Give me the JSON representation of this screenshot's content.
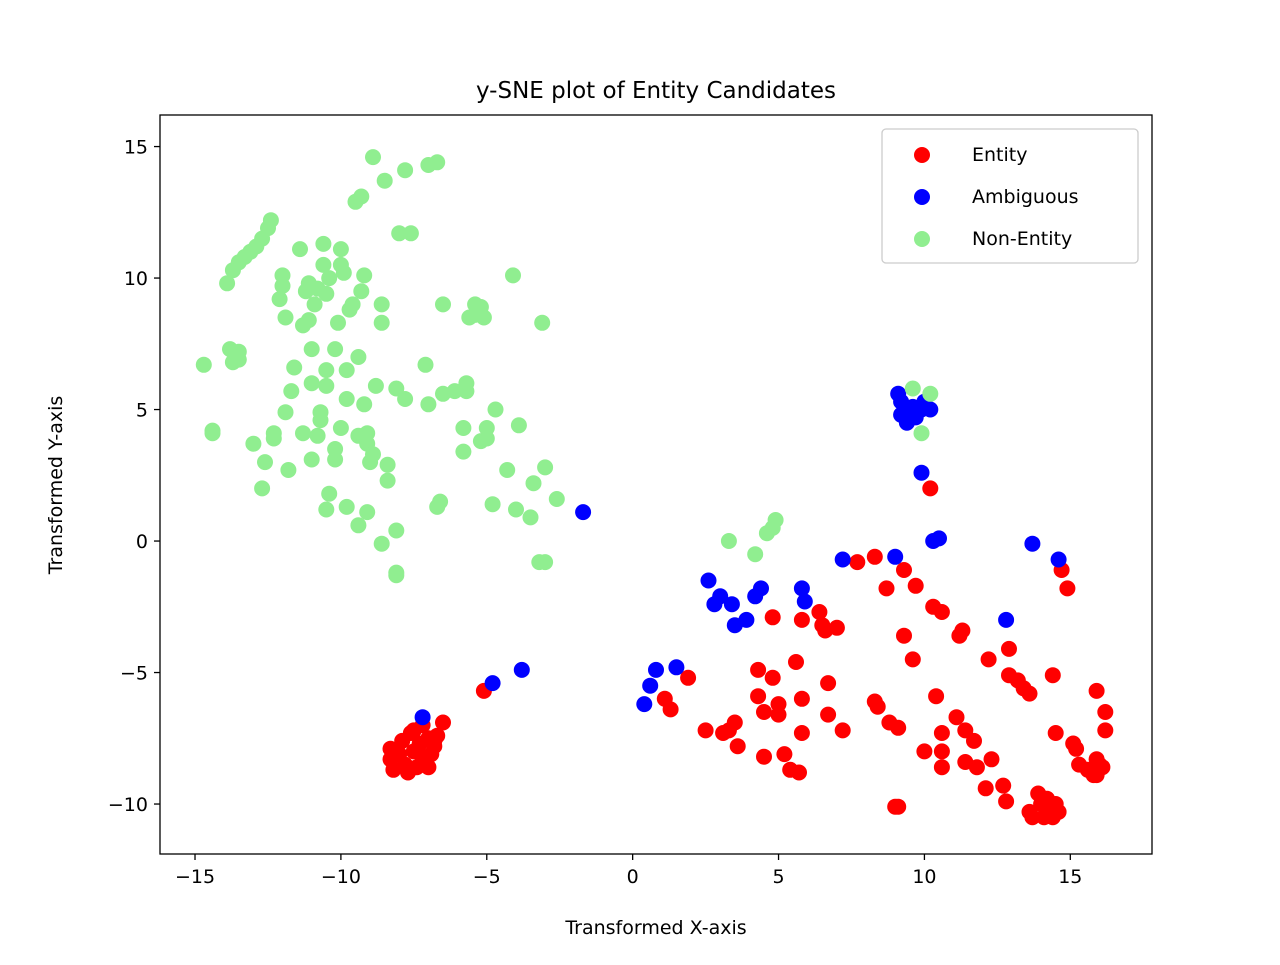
{
  "chart_data": {
    "type": "scatter",
    "title": "y-SNE plot of Entity Candidates",
    "xlabel": "Transformed X-axis",
    "ylabel": "Transformed Y-axis",
    "xlim": [
      -16.2,
      17.8
    ],
    "ylim": [
      -11.9,
      16.2
    ],
    "xticks": [
      -15,
      -10,
      -5,
      0,
      5,
      10,
      15
    ],
    "yticks": [
      15,
      10,
      5,
      0,
      -5,
      -10
    ],
    "xtick_labels": [
      "−15",
      "−10",
      "−5",
      "0",
      "5",
      "10",
      "15"
    ],
    "ytick_labels": [
      "15",
      "10",
      "5",
      "0",
      "−5",
      "−10"
    ],
    "grid": false,
    "legend": {
      "position": "top-right"
    },
    "series": [
      {
        "name": "Entity",
        "color": "#ff0000",
        "points": [
          [
            -8.3,
            -7.9
          ],
          [
            -8.3,
            -8.3
          ],
          [
            -8.2,
            -8.7
          ],
          [
            -8.0,
            -8.1
          ],
          [
            -7.9,
            -7.6
          ],
          [
            -7.8,
            -8.5
          ],
          [
            -7.6,
            -7.3
          ],
          [
            -7.5,
            -8.0
          ],
          [
            -7.4,
            -8.6
          ],
          [
            -7.3,
            -7.7
          ],
          [
            -7.2,
            -8.2
          ],
          [
            -7.1,
            -8.4
          ],
          [
            -7.0,
            -7.5
          ],
          [
            -6.9,
            -8.1
          ],
          [
            -6.8,
            -7.8
          ],
          [
            -7.0,
            -8.6
          ],
          [
            -7.5,
            -7.2
          ],
          [
            -7.7,
            -8.8
          ],
          [
            -6.7,
            -7.4
          ],
          [
            -6.5,
            -6.9
          ],
          [
            -7.2,
            -7.0
          ],
          [
            -6.8,
            -7.6
          ],
          [
            -5.1,
            -5.7
          ],
          [
            1.1,
            -6.0
          ],
          [
            1.3,
            -6.4
          ],
          [
            1.9,
            -5.2
          ],
          [
            2.5,
            -7.2
          ],
          [
            3.1,
            -7.3
          ],
          [
            3.3,
            -7.2
          ],
          [
            3.5,
            -6.9
          ],
          [
            3.6,
            -7.8
          ],
          [
            4.3,
            -4.9
          ],
          [
            4.3,
            -5.9
          ],
          [
            4.5,
            -6.5
          ],
          [
            4.5,
            -8.2
          ],
          [
            4.8,
            -5.2
          ],
          [
            4.8,
            -2.9
          ],
          [
            5.0,
            -6.2
          ],
          [
            5.0,
            -6.6
          ],
          [
            5.2,
            -8.1
          ],
          [
            5.4,
            -8.7
          ],
          [
            5.6,
            -4.6
          ],
          [
            5.7,
            -8.8
          ],
          [
            5.8,
            -3.0
          ],
          [
            5.8,
            -6.0
          ],
          [
            5.8,
            -7.3
          ],
          [
            6.4,
            -2.7
          ],
          [
            6.5,
            -3.2
          ],
          [
            6.6,
            -3.4
          ],
          [
            6.7,
            -5.4
          ],
          [
            6.7,
            -6.6
          ],
          [
            7.0,
            -3.3
          ],
          [
            7.2,
            -7.2
          ],
          [
            7.7,
            -0.8
          ],
          [
            8.3,
            -0.6
          ],
          [
            8.3,
            -6.1
          ],
          [
            8.4,
            -6.3
          ],
          [
            8.7,
            -1.8
          ],
          [
            8.8,
            -6.9
          ],
          [
            9.0,
            -10.1
          ],
          [
            9.1,
            -10.1
          ],
          [
            9.1,
            -7.1
          ],
          [
            9.3,
            -1.1
          ],
          [
            9.3,
            -3.6
          ],
          [
            9.6,
            -4.5
          ],
          [
            9.7,
            -1.7
          ],
          [
            10.0,
            -8.0
          ],
          [
            10.2,
            2.0
          ],
          [
            10.3,
            -2.5
          ],
          [
            10.4,
            -5.9
          ],
          [
            10.6,
            -2.7
          ],
          [
            10.6,
            -7.3
          ],
          [
            10.6,
            -8.0
          ],
          [
            10.6,
            -8.6
          ],
          [
            11.1,
            -6.7
          ],
          [
            11.2,
            -3.6
          ],
          [
            11.3,
            -3.4
          ],
          [
            11.4,
            -7.2
          ],
          [
            11.4,
            -8.4
          ],
          [
            11.7,
            -7.6
          ],
          [
            11.8,
            -8.6
          ],
          [
            12.1,
            -9.4
          ],
          [
            12.2,
            -4.5
          ],
          [
            12.3,
            -8.3
          ],
          [
            12.7,
            -9.3
          ],
          [
            12.8,
            -9.9
          ],
          [
            12.9,
            -4.1
          ],
          [
            12.9,
            -5.1
          ],
          [
            13.2,
            -5.3
          ],
          [
            13.4,
            -5.6
          ],
          [
            13.6,
            -5.8
          ],
          [
            13.6,
            -10.3
          ],
          [
            13.7,
            -10.5
          ],
          [
            13.9,
            -9.6
          ],
          [
            14.0,
            -10.0
          ],
          [
            14.1,
            -10.5
          ],
          [
            14.2,
            -9.8
          ],
          [
            14.3,
            -10.2
          ],
          [
            14.4,
            -10.5
          ],
          [
            14.5,
            -10.0
          ],
          [
            14.6,
            -10.3
          ],
          [
            14.4,
            -5.1
          ],
          [
            14.5,
            -7.3
          ],
          [
            14.7,
            -1.1
          ],
          [
            14.9,
            -1.8
          ],
          [
            15.1,
            -7.7
          ],
          [
            15.2,
            -7.9
          ],
          [
            15.3,
            -8.5
          ],
          [
            15.6,
            -8.7
          ],
          [
            15.8,
            -8.9
          ],
          [
            15.9,
            -8.3
          ],
          [
            15.9,
            -8.9
          ],
          [
            15.9,
            -5.7
          ],
          [
            16.0,
            -8.5
          ],
          [
            16.1,
            -8.6
          ],
          [
            16.2,
            -6.5
          ],
          [
            16.2,
            -7.2
          ]
        ]
      },
      {
        "name": "Ambiguous",
        "color": "#0000ff",
        "points": [
          [
            -7.2,
            -6.7
          ],
          [
            -4.8,
            -5.4
          ],
          [
            -3.8,
            -4.9
          ],
          [
            -1.7,
            1.1
          ],
          [
            0.4,
            -6.2
          ],
          [
            0.6,
            -5.5
          ],
          [
            0.8,
            -4.9
          ],
          [
            1.5,
            -4.8
          ],
          [
            2.6,
            -1.5
          ],
          [
            2.8,
            -2.4
          ],
          [
            3.0,
            -2.1
          ],
          [
            3.4,
            -2.4
          ],
          [
            3.5,
            -3.2
          ],
          [
            3.9,
            -3.0
          ],
          [
            4.2,
            -2.1
          ],
          [
            4.4,
            -1.8
          ],
          [
            5.8,
            -1.8
          ],
          [
            5.9,
            -2.3
          ],
          [
            7.2,
            -0.7
          ],
          [
            9.0,
            -0.6
          ],
          [
            9.1,
            5.6
          ],
          [
            9.2,
            5.3
          ],
          [
            9.2,
            4.8
          ],
          [
            9.4,
            4.5
          ],
          [
            9.6,
            5.1
          ],
          [
            9.7,
            4.7
          ],
          [
            9.9,
            5.0
          ],
          [
            10.0,
            5.3
          ],
          [
            10.2,
            5.0
          ],
          [
            9.9,
            2.6
          ],
          [
            10.3,
            0.0
          ],
          [
            10.5,
            0.1
          ],
          [
            12.8,
            -3.0
          ],
          [
            13.7,
            -0.1
          ],
          [
            14.6,
            -0.7
          ]
        ]
      },
      {
        "name": "Non-Entity",
        "color": "#90ee90",
        "points": [
          [
            -14.7,
            6.7
          ],
          [
            -14.4,
            4.1
          ],
          [
            -14.4,
            4.2
          ],
          [
            -13.9,
            9.8
          ],
          [
            -13.8,
            7.3
          ],
          [
            -13.7,
            6.8
          ],
          [
            -13.5,
            7.2
          ],
          [
            -13.5,
            6.9
          ],
          [
            -13.7,
            10.3
          ],
          [
            -13.5,
            10.6
          ],
          [
            -13.3,
            10.8
          ],
          [
            -13.1,
            11.0
          ],
          [
            -12.9,
            11.2
          ],
          [
            -12.7,
            11.5
          ],
          [
            -12.5,
            11.9
          ],
          [
            -12.4,
            12.2
          ],
          [
            -13.0,
            3.7
          ],
          [
            -12.7,
            2.0
          ],
          [
            -12.6,
            3.0
          ],
          [
            -12.3,
            3.9
          ],
          [
            -12.3,
            4.1
          ],
          [
            -12.1,
            9.2
          ],
          [
            -12.0,
            9.7
          ],
          [
            -12.0,
            10.1
          ],
          [
            -11.9,
            8.5
          ],
          [
            -11.9,
            4.9
          ],
          [
            -11.8,
            2.7
          ],
          [
            -11.7,
            5.7
          ],
          [
            -11.6,
            6.6
          ],
          [
            -11.4,
            11.1
          ],
          [
            -11.3,
            4.1
          ],
          [
            -11.3,
            8.2
          ],
          [
            -11.2,
            9.5
          ],
          [
            -11.1,
            9.8
          ],
          [
            -11.1,
            8.4
          ],
          [
            -11.0,
            7.3
          ],
          [
            -11.0,
            6.0
          ],
          [
            -11.0,
            3.1
          ],
          [
            -10.9,
            9.0
          ],
          [
            -10.8,
            9.6
          ],
          [
            -10.8,
            4.0
          ],
          [
            -10.7,
            4.6
          ],
          [
            -10.7,
            4.9
          ],
          [
            -10.6,
            11.3
          ],
          [
            -10.6,
            10.5
          ],
          [
            -10.5,
            9.4
          ],
          [
            -10.5,
            6.5
          ],
          [
            -10.5,
            5.9
          ],
          [
            -10.4,
            10.0
          ],
          [
            -10.4,
            1.8
          ],
          [
            -10.5,
            1.2
          ],
          [
            -10.2,
            7.3
          ],
          [
            -10.2,
            3.5
          ],
          [
            -10.2,
            3.1
          ],
          [
            -10.1,
            8.3
          ],
          [
            -10.0,
            11.1
          ],
          [
            -10.0,
            10.5
          ],
          [
            -10.0,
            4.3
          ],
          [
            -9.9,
            10.2
          ],
          [
            -9.8,
            6.5
          ],
          [
            -9.8,
            5.4
          ],
          [
            -9.8,
            1.3
          ],
          [
            -9.7,
            8.8
          ],
          [
            -9.6,
            9.0
          ],
          [
            -9.5,
            12.9
          ],
          [
            -9.4,
            7.0
          ],
          [
            -9.3,
            13.1
          ],
          [
            -9.4,
            4.0
          ],
          [
            -9.4,
            0.6
          ],
          [
            -9.3,
            9.5
          ],
          [
            -9.2,
            10.1
          ],
          [
            -9.2,
            5.2
          ],
          [
            -9.1,
            4.1
          ],
          [
            -9.1,
            3.7
          ],
          [
            -9.1,
            1.1
          ],
          [
            -9.0,
            3.0
          ],
          [
            -8.9,
            14.6
          ],
          [
            -8.9,
            3.3
          ],
          [
            -8.8,
            5.9
          ],
          [
            -8.6,
            8.3
          ],
          [
            -8.6,
            9.0
          ],
          [
            -8.6,
            -0.1
          ],
          [
            -8.5,
            13.7
          ],
          [
            -8.4,
            2.3
          ],
          [
            -8.4,
            2.9
          ],
          [
            -8.1,
            -1.3
          ],
          [
            -8.1,
            -1.2
          ],
          [
            -8.1,
            0.4
          ],
          [
            -8.1,
            5.8
          ],
          [
            -8.0,
            11.7
          ],
          [
            -7.8,
            14.1
          ],
          [
            -7.8,
            5.4
          ],
          [
            -7.6,
            11.7
          ],
          [
            -7.1,
            6.7
          ],
          [
            -7.0,
            5.2
          ],
          [
            -7.0,
            14.3
          ],
          [
            -6.7,
            14.4
          ],
          [
            -6.7,
            1.3
          ],
          [
            -6.6,
            1.5
          ],
          [
            -6.5,
            5.6
          ],
          [
            -6.5,
            9.0
          ],
          [
            -6.1,
            5.7
          ],
          [
            -5.8,
            3.4
          ],
          [
            -5.8,
            4.3
          ],
          [
            -5.7,
            5.7
          ],
          [
            -5.7,
            6.0
          ],
          [
            -5.6,
            8.5
          ],
          [
            -5.4,
            9.0
          ],
          [
            -5.4,
            8.6
          ],
          [
            -5.3,
            8.7
          ],
          [
            -5.2,
            8.9
          ],
          [
            -5.2,
            3.8
          ],
          [
            -5.1,
            8.5
          ],
          [
            -5.0,
            3.9
          ],
          [
            -5.0,
            4.3
          ],
          [
            -4.8,
            1.4
          ],
          [
            -4.7,
            5.0
          ],
          [
            -4.3,
            2.7
          ],
          [
            -4.1,
            10.1
          ],
          [
            -4.0,
            1.2
          ],
          [
            -3.9,
            4.4
          ],
          [
            -3.5,
            0.9
          ],
          [
            -3.4,
            2.2
          ],
          [
            -3.2,
            -0.8
          ],
          [
            -3.1,
            8.3
          ],
          [
            -3.0,
            2.8
          ],
          [
            -3.0,
            -0.8
          ],
          [
            -2.6,
            1.6
          ],
          [
            3.3,
            0.0
          ],
          [
            4.2,
            -0.5
          ],
          [
            4.6,
            0.3
          ],
          [
            4.8,
            0.5
          ],
          [
            4.9,
            0.8
          ],
          [
            9.6,
            5.8
          ],
          [
            9.9,
            4.1
          ],
          [
            10.2,
            5.6
          ]
        ]
      }
    ]
  }
}
